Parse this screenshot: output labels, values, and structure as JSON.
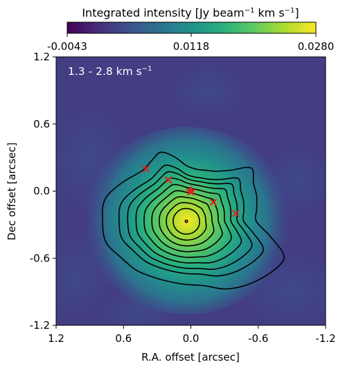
{
  "chart_data": {
    "type": "heatmap",
    "panel_label": "1.3 - 2.8 km s",
    "panel_label_sup": "−1",
    "xlabel": "R.A. offset [arcsec]",
    "ylabel": "Dec offset [arcsec]",
    "xlim": [
      1.2,
      -1.2
    ],
    "ylim": [
      -1.2,
      1.2
    ],
    "x_ticks": [
      1.2,
      0.6,
      0.0,
      -0.6,
      -1.2
    ],
    "x_tick_labels": [
      "1.2",
      "0.6",
      "0.0",
      "-0.6",
      "-1.2"
    ],
    "y_ticks": [
      1.2,
      0.6,
      0.0,
      -0.6,
      -1.2
    ],
    "y_tick_labels": [
      "1.2",
      "0.6",
      "0.0",
      "-0.6",
      "-1.2"
    ],
    "colorbar": {
      "label_main": "Integrated intensity [Jy beam",
      "label_sup1": "−1",
      "label_mid": " km s",
      "label_sup2": "−1",
      "label_end": "]",
      "colormap": "viridis",
      "vmin": -0.0043,
      "vmax": 0.028,
      "ticks": [
        -0.0043,
        0.0118,
        0.028
      ],
      "tick_labels": [
        "-0.0043",
        "0.0118",
        "0.0280"
      ]
    },
    "emission_peak": {
      "x": 0.04,
      "y": -0.27,
      "value": 0.028
    },
    "star_marker": {
      "x": 0.0,
      "y": 0.0,
      "color": "#e0201c"
    },
    "cross_markers": [
      {
        "x": 0.4,
        "y": 0.2
      },
      {
        "x": 0.2,
        "y": 0.1
      },
      {
        "x": -0.2,
        "y": -0.1
      },
      {
        "x": -0.4,
        "y": -0.2
      }
    ],
    "contour_count": 10,
    "contour_color": "#000000",
    "marker_color": "#e0201c"
  }
}
